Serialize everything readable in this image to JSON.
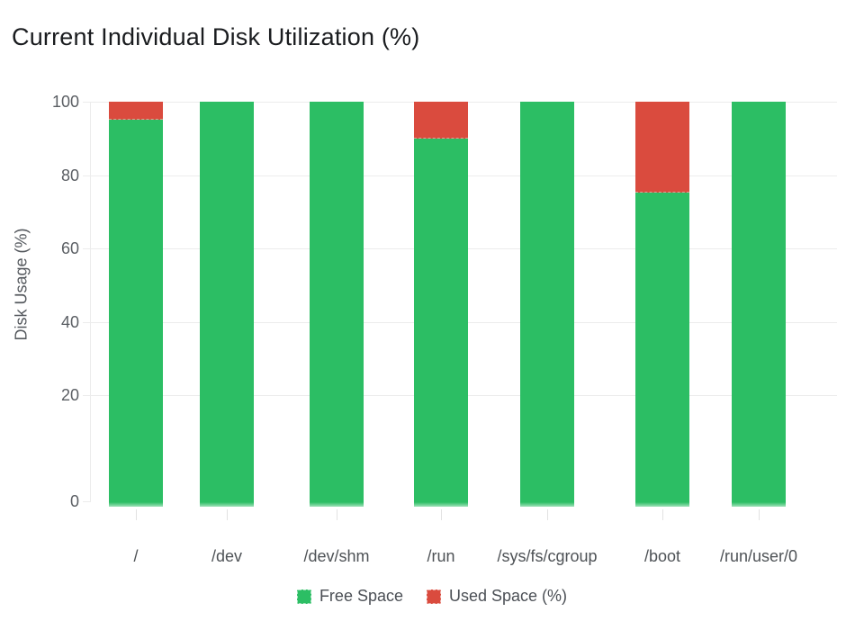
{
  "chart": {
    "title": "Current Individual Disk Utilization (%)",
    "ylabel": "Disk Usage (%)"
  },
  "chart_data": {
    "type": "bar",
    "stacked": true,
    "categories": [
      "/",
      "/dev",
      "/dev/shm",
      "/run",
      "/sys/fs/cgroup",
      "/boot",
      "/run/user/0"
    ],
    "series": [
      {
        "name": "Free Space",
        "color": "#2cbe64",
        "values": [
          95,
          100,
          100,
          90,
          100,
          75,
          100
        ]
      },
      {
        "name": "Used Space (%)",
        "color": "#da4b3e",
        "values": [
          5,
          0,
          0,
          10,
          0,
          25,
          0
        ]
      }
    ],
    "title": "Current Individual Disk Utilization (%)",
    "xlabel": "",
    "ylabel": "Disk Usage (%)",
    "ylim": [
      0,
      100
    ],
    "yticks": [
      100,
      80,
      60,
      40,
      20,
      0
    ],
    "grid": true,
    "legend_position": "bottom",
    "colors": {
      "free": "#2cbe64",
      "used": "#da4b3e",
      "gridline": "#ececec",
      "title_text": "#1a1c1f",
      "axis_text": "#55595e"
    }
  },
  "legend": {
    "items": [
      {
        "label": "Free Space",
        "color": "#2cbe64"
      },
      {
        "label": "Used Space (%)",
        "color": "#da4b3e"
      }
    ]
  }
}
